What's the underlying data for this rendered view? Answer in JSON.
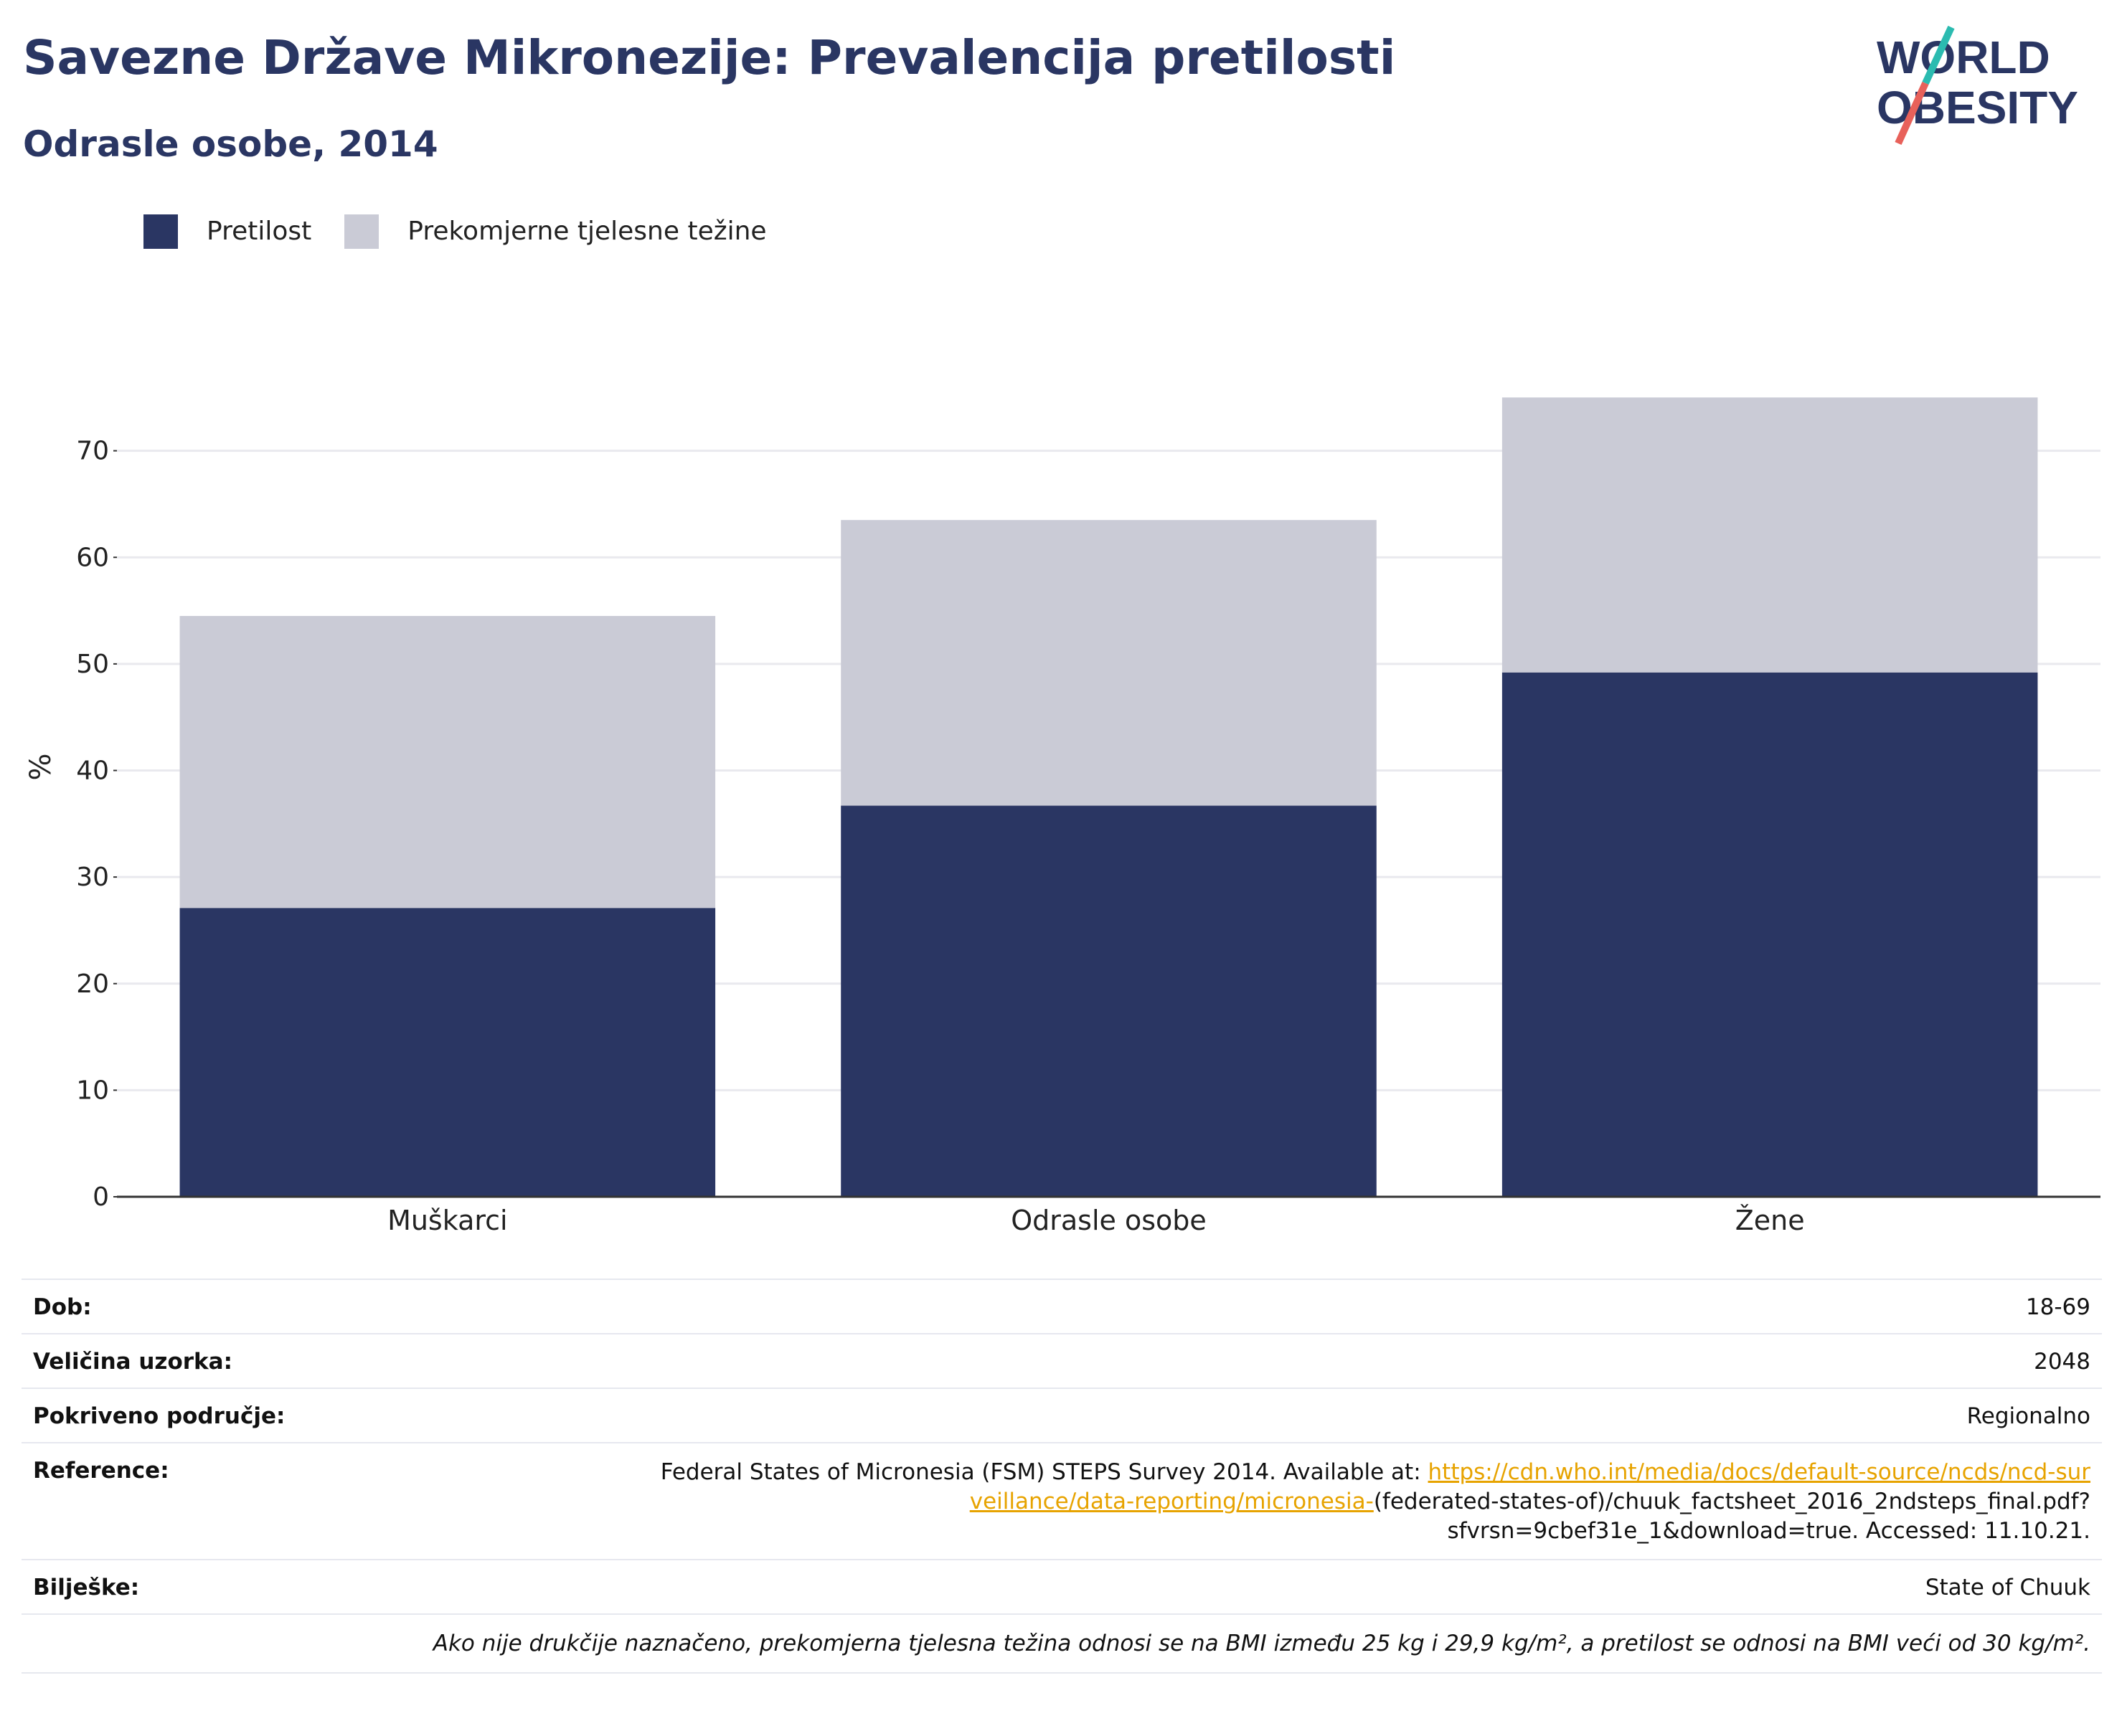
{
  "header": {
    "title": "Savezne Države Mikronezije: Prevalencija pretilosti",
    "subtitle": "Odrasle osobe, 2014"
  },
  "logo": {
    "line1": "WORLD",
    "line2": "OBESITY",
    "accent_teal": "#2bbbb0",
    "accent_red": "#e8615a"
  },
  "colors": {
    "obesity": "#2a3663",
    "overweight": "#cacbd6",
    "grid": "#e9e9ee",
    "axis": "#333333"
  },
  "chart_data": {
    "type": "bar",
    "stacked": true,
    "categories": [
      "Muškarci",
      "Odrasle osobe",
      "Žene"
    ],
    "series": [
      {
        "name": "Pretilost",
        "color": "#2a3663",
        "values": [
          27.1,
          36.7,
          49.2
        ]
      },
      {
        "name": "Prekomjerne tjelesne težine",
        "color": "#cacbd6",
        "values": [
          27.4,
          26.8,
          25.8
        ]
      }
    ],
    "ylabel": "%",
    "ylim": [
      0,
      80
    ],
    "yticks": [
      0,
      10,
      20,
      30,
      40,
      50,
      60,
      70
    ],
    "grid": true,
    "legend_position": "top-left"
  },
  "info": {
    "rows": [
      {
        "label": "Dob:",
        "value": "18-69"
      },
      {
        "label": "Veličina uzorka:",
        "value": "2048"
      },
      {
        "label": "Pokriveno područje:",
        "value": "Regionalno"
      }
    ],
    "reference": {
      "label": "Reference:",
      "text_before": "Federal States of Micronesia (FSM) STEPS Survey 2014. Available at: ",
      "link": "https://cdn.who.int/media/docs/default-source/ncds/ncd-surveillance/data-reporting/micronesia-",
      "text_after": "(federated-states-of)/chuuk_factsheet_2016_2ndsteps_final.pdf?sfvrsn=9cbef31e_1&download=true. Accessed: 11.10.21."
    },
    "notes": {
      "label": "Bilješke:",
      "value": "State of Chuuk"
    },
    "footnote": "Ako nije drukčije naznačeno, prekomjerna tjelesna težina odnosi se na BMI između 25 kg i 29,9 kg/m², a pretilost se odnosi na BMI veći od 30 kg/m²."
  }
}
